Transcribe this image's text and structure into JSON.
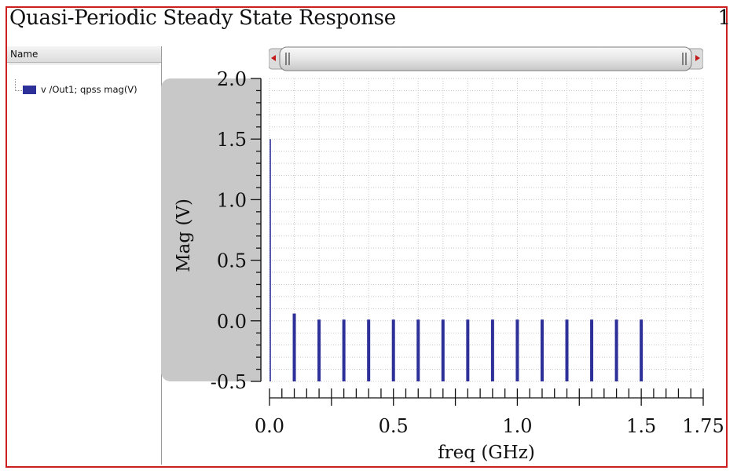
{
  "title": "Quasi-Periodic Steady State Response",
  "page_number": "1",
  "sidebar": {
    "header": "Name",
    "items": [
      {
        "label": "v /Out1; qpss mag(V)",
        "color": "#2e3099"
      }
    ]
  },
  "chart_data": {
    "type": "bar",
    "title": "Quasi-Periodic Steady State Response",
    "xlabel": "freq (GHz)",
    "ylabel": "Mag (V)",
    "xlim": [
      0,
      1.75
    ],
    "ylim": [
      -0.5,
      2.0
    ],
    "xticks": [
      "0.0",
      "0.5",
      "1.0",
      "1.5",
      "1.75"
    ],
    "yticks": [
      "2.0",
      "1.5",
      "1.0",
      "0.5",
      "0.0",
      "-0.5"
    ],
    "grid": true,
    "series": [
      {
        "name": "v /Out1; qpss mag(V)",
        "color": "#2e3099",
        "x": [
          0.0,
          0.1,
          0.2,
          0.3,
          0.4,
          0.5,
          0.6,
          0.7,
          0.8,
          0.9,
          1.0,
          1.1,
          1.2,
          1.3,
          1.4,
          1.5
        ],
        "values": [
          1.5,
          0.06,
          0.01,
          0.01,
          0.01,
          0.01,
          0.01,
          0.01,
          0.01,
          0.01,
          0.01,
          0.01,
          0.01,
          0.01,
          0.01,
          0.01
        ]
      }
    ]
  }
}
